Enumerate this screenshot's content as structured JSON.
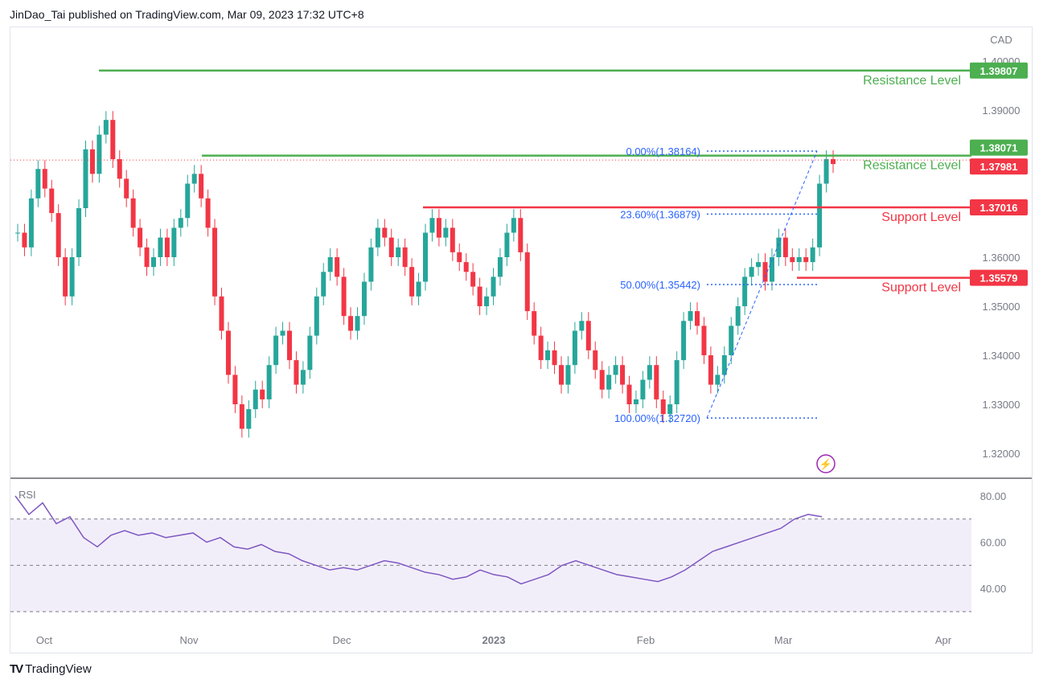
{
  "header": {
    "text": "JinDao_Tai published on TradingView.com, Mar 09, 2023 17:32 UTC+8"
  },
  "footer": {
    "logo": "TV",
    "brand": "TradingView"
  },
  "axis": {
    "currency": "CAD",
    "price_ticks": [
      "1.40000",
      "1.39000",
      "1.36000",
      "1.35000",
      "1.34000",
      "1.33000",
      "1.32000"
    ],
    "time_ticks": [
      "Oct",
      "Nov",
      "Dec",
      "2023",
      "Feb",
      "Mar",
      "Apr"
    ]
  },
  "price_tags": [
    {
      "value": "1.39807",
      "color": "#4caf50"
    },
    {
      "value": "1.38071",
      "color": "#4caf50"
    },
    {
      "value": "1.37981",
      "color": "#f23645"
    },
    {
      "value": "1.37016",
      "color": "#f23645"
    },
    {
      "value": "1.35579",
      "color": "#f23645"
    }
  ],
  "levels": [
    {
      "label": "Resistance Level",
      "price": 1.39807,
      "color": "#4caf50"
    },
    {
      "label": "Resistance Level",
      "price": 1.38071,
      "color": "#4caf50"
    },
    {
      "label": "Support Level",
      "price": 1.37016,
      "color": "#f23645"
    },
    {
      "label": "Support Level",
      "price": 1.35579,
      "color": "#f23645"
    }
  ],
  "fib": [
    {
      "label": "0.00%(1.38164)",
      "price": 1.38164
    },
    {
      "label": "23.60%(1.36879)",
      "price": 1.36879
    },
    {
      "label": "50.00%(1.35442)",
      "price": 1.35442
    },
    {
      "label": "100.00%(1.32720)",
      "price": 1.3272
    }
  ],
  "rsi": {
    "label": "RSI",
    "ticks": [
      "80.00",
      "60.00",
      "40.00"
    ],
    "upper_band": 70,
    "lower_band": 30,
    "values": [
      80,
      72,
      77,
      68,
      71,
      62,
      58,
      63,
      65,
      63,
      64,
      62,
      63,
      64,
      60,
      62,
      58,
      57,
      59,
      56,
      55,
      52,
      50,
      48,
      49,
      48,
      50,
      52,
      51,
      49,
      47,
      46,
      44,
      45,
      48,
      46,
      45,
      42,
      44,
      46,
      50,
      52,
      50,
      48,
      46,
      45,
      44,
      43,
      45,
      48,
      52,
      56,
      58,
      60,
      62,
      64,
      66,
      70,
      72,
      71
    ]
  },
  "icons": {
    "alert": "lightning-bolt-icon"
  }
}
